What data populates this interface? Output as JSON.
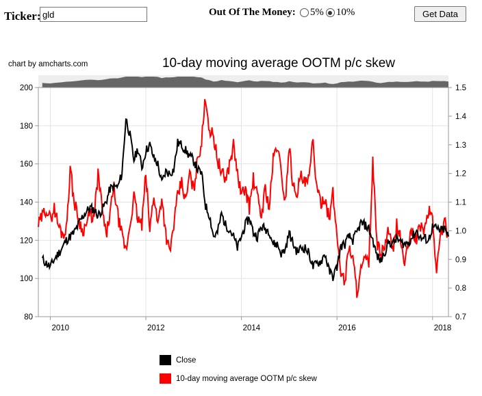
{
  "form": {
    "ticker_label": "Ticker:",
    "ticker_value": "gld",
    "ootm_label": "Out Of The Money:",
    "options": [
      {
        "label": "5%",
        "checked": false
      },
      {
        "label": "10%",
        "checked": true
      }
    ],
    "button_label": "Get Data"
  },
  "chart_credit": "chart by amcharts.com",
  "chart_data": {
    "type": "line",
    "title": "10-day moving average OOTM p/c skew",
    "x_range": [
      "2009-10",
      "2018-05"
    ],
    "x_ticks": [
      "2010",
      "2012",
      "2014",
      "2016",
      "2018"
    ],
    "y_left": {
      "range": [
        80,
        200
      ],
      "ticks": [
        "80",
        "100",
        "120",
        "140",
        "160",
        "180",
        "200"
      ]
    },
    "y_right": {
      "range": [
        0.7,
        1.5
      ],
      "ticks": [
        "0.7",
        "0.8",
        "0.9",
        "1.0",
        "1.1",
        "1.2",
        "1.3",
        "1.4",
        "1.5"
      ]
    },
    "grid": true,
    "legend_position": "bottom",
    "colors": {
      "close": "#000000",
      "skew": "#ff0000",
      "scrollbar": "#666666",
      "scrollbar_bg": "#eeeeee"
    },
    "series": [
      {
        "name": "Close",
        "axis": "left",
        "color": "#000000",
        "points": [
          [
            "2009-11",
            110
          ],
          [
            "2009-12",
            108
          ],
          [
            "2010-01",
            106
          ],
          [
            "2010-02",
            110
          ],
          [
            "2010-03",
            113
          ],
          [
            "2010-04",
            116
          ],
          [
            "2010-05",
            120
          ],
          [
            "2010-06",
            122
          ],
          [
            "2010-07",
            124
          ],
          [
            "2010-08",
            128
          ],
          [
            "2010-09",
            132
          ],
          [
            "2010-10",
            135
          ],
          [
            "2010-11",
            137
          ],
          [
            "2010-12",
            136
          ],
          [
            "2011-01",
            133
          ],
          [
            "2011-02",
            136
          ],
          [
            "2011-03",
            140
          ],
          [
            "2011-04",
            147
          ],
          [
            "2011-05",
            148
          ],
          [
            "2011-06",
            148
          ],
          [
            "2011-07",
            155
          ],
          [
            "2011-08",
            184
          ],
          [
            "2011-09",
            175
          ],
          [
            "2011-10",
            162
          ],
          [
            "2011-11",
            168
          ],
          [
            "2011-12",
            158
          ],
          [
            "2012-01",
            167
          ],
          [
            "2012-02",
            170
          ],
          [
            "2012-03",
            163
          ],
          [
            "2012-04",
            160
          ],
          [
            "2012-05",
            150
          ],
          [
            "2012-06",
            156
          ],
          [
            "2012-07",
            155
          ],
          [
            "2012-08",
            157
          ],
          [
            "2012-09",
            171
          ],
          [
            "2012-10",
            170
          ],
          [
            "2012-11",
            167
          ],
          [
            "2012-12",
            164
          ],
          [
            "2013-01",
            162
          ],
          [
            "2013-02",
            157
          ],
          [
            "2013-03",
            155
          ],
          [
            "2013-04",
            138
          ],
          [
            "2013-05",
            133
          ],
          [
            "2013-06",
            122
          ],
          [
            "2013-07",
            124
          ],
          [
            "2013-08",
            134
          ],
          [
            "2013-09",
            128
          ],
          [
            "2013-10",
            126
          ],
          [
            "2013-11",
            122
          ],
          [
            "2013-12",
            116
          ],
          [
            "2014-01",
            122
          ],
          [
            "2014-02",
            128
          ],
          [
            "2014-03",
            132
          ],
          [
            "2014-04",
            124
          ],
          [
            "2014-05",
            122
          ],
          [
            "2014-06",
            127
          ],
          [
            "2014-07",
            126
          ],
          [
            "2014-08",
            125
          ],
          [
            "2014-09",
            118
          ],
          [
            "2014-10",
            118
          ],
          [
            "2014-11",
            113
          ],
          [
            "2014-12",
            115
          ],
          [
            "2015-01",
            124
          ],
          [
            "2015-02",
            118
          ],
          [
            "2015-03",
            114
          ],
          [
            "2015-04",
            116
          ],
          [
            "2015-05",
            116
          ],
          [
            "2015-06",
            113
          ],
          [
            "2015-07",
            106
          ],
          [
            "2015-08",
            108
          ],
          [
            "2015-09",
            109
          ],
          [
            "2015-10",
            113
          ],
          [
            "2015-11",
            104
          ],
          [
            "2015-12",
            101
          ],
          [
            "2016-01",
            106
          ],
          [
            "2016-02",
            117
          ],
          [
            "2016-03",
            118
          ],
          [
            "2016-04",
            122
          ],
          [
            "2016-05",
            120
          ],
          [
            "2016-06",
            124
          ],
          [
            "2016-07",
            129
          ],
          [
            "2016-08",
            128
          ],
          [
            "2016-09",
            126
          ],
          [
            "2016-10",
            120
          ],
          [
            "2016-11",
            112
          ],
          [
            "2016-12",
            109
          ],
          [
            "2017-01",
            114
          ],
          [
            "2017-02",
            119
          ],
          [
            "2017-03",
            118
          ],
          [
            "2017-04",
            121
          ],
          [
            "2017-05",
            119
          ],
          [
            "2017-06",
            118
          ],
          [
            "2017-07",
            119
          ],
          [
            "2017-08",
            122
          ],
          [
            "2017-09",
            125
          ],
          [
            "2017-10",
            121
          ],
          [
            "2017-11",
            121
          ],
          [
            "2017-12",
            120
          ],
          [
            "2018-01",
            127
          ],
          [
            "2018-02",
            126
          ],
          [
            "2018-03",
            125
          ],
          [
            "2018-04",
            126
          ],
          [
            "2018-05",
            122
          ]
        ]
      },
      {
        "name": "10-day moving average OOTM p/c skew",
        "axis": "right",
        "color": "#ff0000",
        "points": [
          [
            "2009-10",
            1.02
          ],
          [
            "2009-11",
            1.05
          ],
          [
            "2009-12",
            1.08
          ],
          [
            "2010-01",
            1.04
          ],
          [
            "2010-02",
            1.08
          ],
          [
            "2010-03",
            1.02
          ],
          [
            "2010-04",
            0.99
          ],
          [
            "2010-05",
            1.0
          ],
          [
            "2010-06",
            1.22
          ],
          [
            "2010-07",
            1.1
          ],
          [
            "2010-08",
            1.05
          ],
          [
            "2010-09",
            1.0
          ],
          [
            "2010-10",
            1.02
          ],
          [
            "2010-11",
            1.06
          ],
          [
            "2010-12",
            1.04
          ],
          [
            "2011-01",
            1.2
          ],
          [
            "2011-02",
            1.08
          ],
          [
            "2011-03",
            0.98
          ],
          [
            "2011-04",
            1.06
          ],
          [
            "2011-05",
            1.15
          ],
          [
            "2011-06",
            1.05
          ],
          [
            "2011-07",
            0.98
          ],
          [
            "2011-08",
            0.93
          ],
          [
            "2011-09",
            1.02
          ],
          [
            "2011-10",
            1.12
          ],
          [
            "2011-11",
            1.04
          ],
          [
            "2011-12",
            1.02
          ],
          [
            "2012-01",
            1.2
          ],
          [
            "2012-02",
            1.0
          ],
          [
            "2012-03",
            1.13
          ],
          [
            "2012-04",
            1.02
          ],
          [
            "2012-05",
            1.12
          ],
          [
            "2012-06",
            0.99
          ],
          [
            "2012-07",
            0.92
          ],
          [
            "2012-08",
            1.02
          ],
          [
            "2012-09",
            1.12
          ],
          [
            "2012-10",
            1.17
          ],
          [
            "2012-11",
            1.1
          ],
          [
            "2012-12",
            1.2
          ],
          [
            "2013-01",
            1.14
          ],
          [
            "2013-02",
            1.25
          ],
          [
            "2013-03",
            1.31
          ],
          [
            "2013-04",
            1.47
          ],
          [
            "2013-05",
            1.35
          ],
          [
            "2013-06",
            1.33
          ],
          [
            "2013-07",
            1.25
          ],
          [
            "2013-08",
            1.2
          ],
          [
            "2013-09",
            1.18
          ],
          [
            "2013-10",
            1.23
          ],
          [
            "2013-11",
            1.3
          ],
          [
            "2013-12",
            1.2
          ],
          [
            "2014-01",
            1.12
          ],
          [
            "2014-02",
            1.15
          ],
          [
            "2014-03",
            1.08
          ],
          [
            "2014-04",
            1.18
          ],
          [
            "2014-05",
            1.12
          ],
          [
            "2014-06",
            1.05
          ],
          [
            "2014-07",
            1.15
          ],
          [
            "2014-08",
            1.08
          ],
          [
            "2014-09",
            1.25
          ],
          [
            "2014-10",
            1.3
          ],
          [
            "2014-11",
            1.2
          ],
          [
            "2014-12",
            1.1
          ],
          [
            "2015-01",
            1.3
          ],
          [
            "2015-02",
            1.15
          ],
          [
            "2015-03",
            1.14
          ],
          [
            "2015-04",
            1.19
          ],
          [
            "2015-05",
            1.16
          ],
          [
            "2015-06",
            1.18
          ],
          [
            "2015-07",
            1.32
          ],
          [
            "2015-08",
            1.13
          ],
          [
            "2015-09",
            1.1
          ],
          [
            "2015-10",
            1.12
          ],
          [
            "2015-11",
            1.04
          ],
          [
            "2015-12",
            1.13
          ],
          [
            "2016-01",
            0.98
          ],
          [
            "2016-02",
            0.86
          ],
          [
            "2016-03",
            0.82
          ],
          [
            "2016-04",
            0.95
          ],
          [
            "2016-05",
            0.9
          ],
          [
            "2016-06",
            0.79
          ],
          [
            "2016-07",
            0.86
          ],
          [
            "2016-08",
            0.9
          ],
          [
            "2016-09",
            0.88
          ],
          [
            "2016-10",
            1.24
          ],
          [
            "2016-11",
            0.96
          ],
          [
            "2016-12",
            0.91
          ],
          [
            "2017-01",
            0.95
          ],
          [
            "2017-02",
            1.0
          ],
          [
            "2017-03",
            0.92
          ],
          [
            "2017-04",
            1.02
          ],
          [
            "2017-05",
            0.97
          ],
          [
            "2017-06",
            0.88
          ],
          [
            "2017-07",
            0.96
          ],
          [
            "2017-08",
            1.0
          ],
          [
            "2017-09",
            0.97
          ],
          [
            "2017-10",
            1.02
          ],
          [
            "2017-11",
            1.0
          ],
          [
            "2017-12",
            1.07
          ],
          [
            "2018-01",
            1.05
          ],
          [
            "2018-02",
            0.85
          ],
          [
            "2018-03",
            0.99
          ],
          [
            "2018-04",
            1.03
          ],
          [
            "2018-05",
            0.98
          ]
        ]
      }
    ]
  }
}
